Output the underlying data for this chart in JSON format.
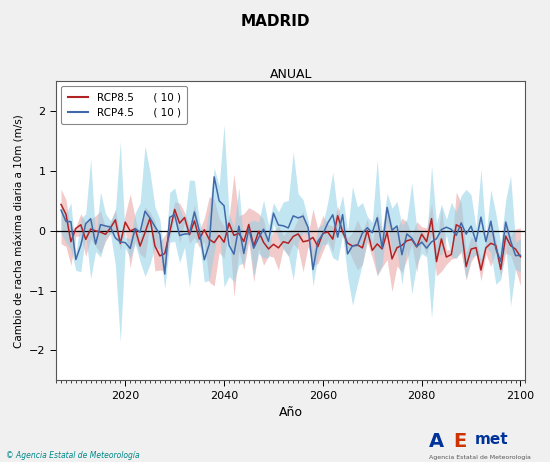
{
  "title": "MADRID",
  "subtitle": "ANUAL",
  "xlabel": "Año",
  "ylabel": "Cambio de racha máxima diaria a 10m (m/s)",
  "xlim": [
    2006,
    2101
  ],
  "ylim": [
    -2.5,
    2.5
  ],
  "yticks": [
    -2,
    -1,
    0,
    1,
    2
  ],
  "xticks": [
    2020,
    2040,
    2060,
    2080,
    2100
  ],
  "rcp85_color": "#b22222",
  "rcp45_color": "#4169aa",
  "rcp85_fill_color": "#e8a0a0",
  "rcp45_fill_color": "#90d0e8",
  "legend_label_85": "RCP8.5      ( 10 )",
  "legend_label_45": "RCP4.5      ( 10 )",
  "copyright_text": "© Agencia Estatal de Meteorología",
  "background_color": "#f0f0f0",
  "plot_bg_color": "#ffffff",
  "seed": 42,
  "n_years": 94,
  "start_year": 2007
}
